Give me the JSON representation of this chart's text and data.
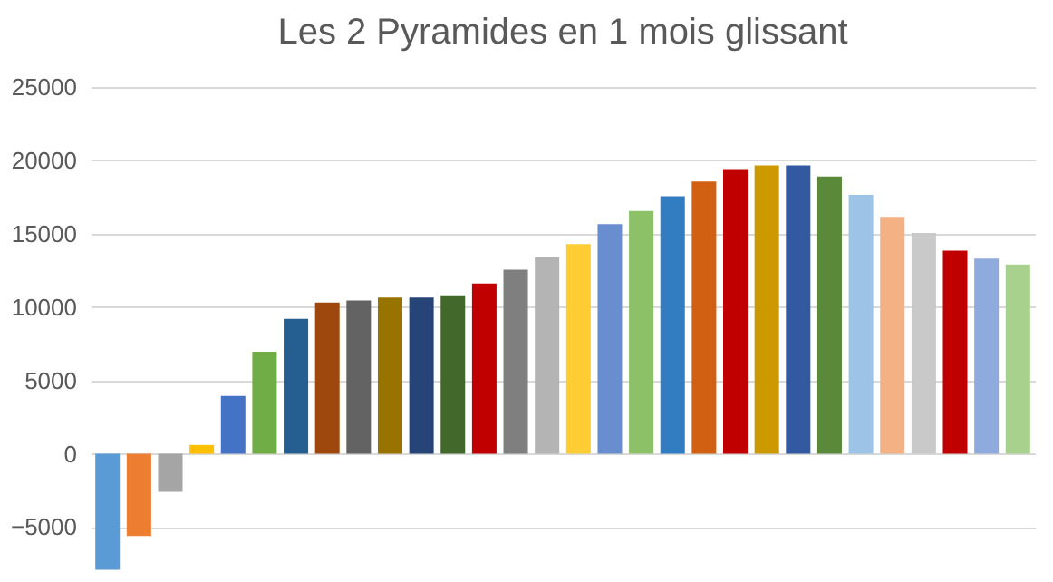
{
  "chart_data": {
    "type": "bar",
    "title": "Les 2 Pyramides en 1 mois glissant",
    "categories": [
      null,
      null,
      null,
      null,
      null,
      null,
      null,
      null,
      null,
      null,
      null,
      null,
      null,
      null,
      null,
      null,
      null,
      null,
      null,
      null,
      null,
      null,
      null,
      null,
      null,
      null,
      null,
      null,
      null,
      null
    ],
    "values": [
      -7900,
      -5600,
      -2600,
      600,
      3950,
      6950,
      9200,
      10300,
      10450,
      10650,
      10650,
      10800,
      11600,
      12550,
      13400,
      14300,
      15650,
      16550,
      17550,
      18550,
      19400,
      19650,
      19650,
      18900,
      17650,
      16150,
      15050,
      13850,
      13300,
      12900
    ],
    "colors": [
      "#5b9bd5",
      "#ed7d31",
      "#a5a5a5",
      "#ffc000",
      "#4472c4",
      "#70ad47",
      "#255e91",
      "#9e480e",
      "#636363",
      "#997300",
      "#264478",
      "#43682b",
      "#c00000",
      "#7f7f7f",
      "#b4b4b4",
      "#ffcd33",
      "#698ed0",
      "#8cc168",
      "#327dc2",
      "#d26012",
      "#c00000",
      "#cc9a00",
      "#335aa1",
      "#5a8a39",
      "#9dc3e6",
      "#f4b183",
      "#c9c9c9",
      "#c00000",
      "#8faadc",
      "#a9d18e"
    ],
    "ylim": [
      -8000,
      25000
    ],
    "yticks": [
      -5000,
      0,
      5000,
      10000,
      15000,
      20000,
      25000
    ],
    "grid": true,
    "tick_labels": "y"
  }
}
